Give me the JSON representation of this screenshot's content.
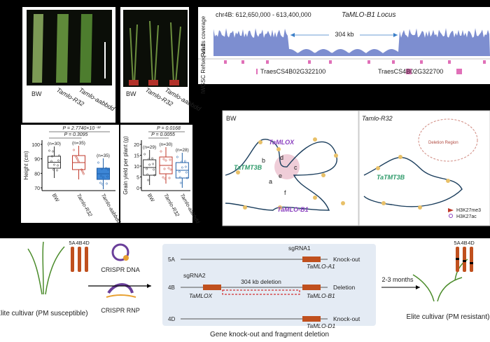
{
  "panel_a": {
    "labels": [
      "BW",
      "Tamlo-R32",
      "Tamlo-aabbdd"
    ]
  },
  "panel_b": {
    "labels": [
      "BW",
      "Tamlo-R32",
      "Tamlo-aabbdd"
    ]
  },
  "panel_c": {
    "region": "chr4B: 612,650,000 - 613,400,000",
    "locus": "TaMLO-B1 Locus",
    "track1": "Reads coverage",
    "deletion": "304 kb",
    "track2": "IWGSC Refseq v1.1",
    "gene1": "TraesCS4B02G322100",
    "gene2": "TraesCS4B02G322700"
  },
  "panel_d": {
    "p1": "P = 2.7740×10⁻¹²",
    "p2": "P = 0.3095",
    "ylabel": "Height (cm)",
    "n": [
      "(n=30)",
      "(n=35)",
      "(n=35)"
    ],
    "yticks": [
      "100",
      "90",
      "80",
      "70"
    ],
    "categories": [
      "BW",
      "Tamlo-R32",
      "Tamlo-aabbdd"
    ]
  },
  "panel_e": {
    "p1": "P = 0.0168",
    "p2": "P = 0.0055",
    "ylabel": "Grain yield per plant (g)",
    "n": [
      "(n=29)",
      "(n=30)",
      "(n=28)"
    ],
    "yticks": [
      "20",
      "15",
      "10",
      "5",
      "0"
    ],
    "categories": [
      "BW",
      "Tamlo-R32",
      "Tamlo-aabbdd"
    ]
  },
  "panel_f": {
    "left_title": "BW",
    "right_title": "Tamlo-R32",
    "genes": [
      "TaMLOX",
      "TaTMT3B",
      "TaMLO-B1"
    ],
    "loops": [
      "a",
      "b",
      "c",
      "d",
      "e",
      "f"
    ],
    "right_gene": "TaTMT3B",
    "region": "Deletion Region",
    "legend": [
      "H3K27me3",
      "H3K27ac"
    ]
  },
  "panel_g": {
    "chroms": [
      "5A",
      "4B",
      "4D"
    ],
    "start": "Elite cultivar (PM susceptible)",
    "dna": "CRISPR DNA",
    "rnp": "CRISPR RNP",
    "sg1": "sgRNA1",
    "sg2": "sgRNA2",
    "outcomes": [
      "Knock-out",
      "Deletion",
      "Knock-out"
    ],
    "deletion": "304 kb deletion",
    "genes": [
      "TaMLOX",
      "TaMLO-A1",
      "TaMLO-B1",
      "TaMLO-D1"
    ],
    "caption": "Gene knock-out and fragment deletion",
    "time": "2-3 months",
    "end": "Elite cultivar (PM resistant)"
  }
}
